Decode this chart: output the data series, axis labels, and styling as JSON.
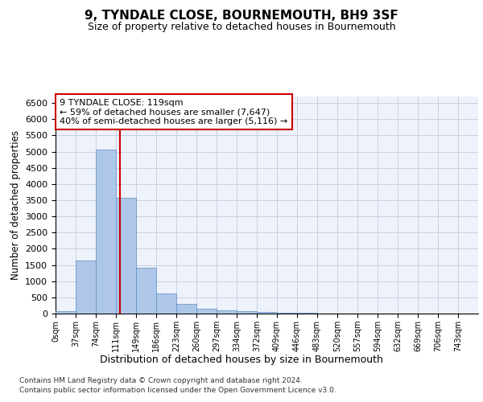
{
  "title": "9, TYNDALE CLOSE, BOURNEMOUTH, BH9 3SF",
  "subtitle": "Size of property relative to detached houses in Bournemouth",
  "xlabel": "Distribution of detached houses by size in Bournemouth",
  "ylabel": "Number of detached properties",
  "annotation_lines": [
    "9 TYNDALE CLOSE: 119sqm",
    "← 59% of detached houses are smaller (7,647)",
    "40% of semi-detached houses are larger (5,116) →"
  ],
  "footnote1": "Contains HM Land Registry data © Crown copyright and database right 2024.",
  "footnote2": "Contains public sector information licensed under the Open Government Licence v3.0.",
  "bar_color": "#aec6e8",
  "bar_edge_color": "#5a8fc2",
  "vline_color": "#cc0000",
  "vline_x": 119,
  "bin_width": 37,
  "num_bins": 21,
  "bin_labels": [
    "0sqm",
    "37sqm",
    "74sqm",
    "111sqm",
    "149sqm",
    "186sqm",
    "223sqm",
    "260sqm",
    "297sqm",
    "334sqm",
    "372sqm",
    "409sqm",
    "446sqm",
    "483sqm",
    "520sqm",
    "557sqm",
    "594sqm",
    "632sqm",
    "669sqm",
    "706sqm",
    "743sqm"
  ],
  "bar_heights": [
    70,
    1630,
    5060,
    3580,
    1410,
    620,
    290,
    145,
    105,
    75,
    55,
    35,
    20,
    10,
    5,
    3,
    2,
    1,
    1,
    0,
    0
  ],
  "ylim": [
    0,
    6700
  ],
  "yticks": [
    0,
    500,
    1000,
    1500,
    2000,
    2500,
    3000,
    3500,
    4000,
    4500,
    5000,
    5500,
    6000,
    6500
  ],
  "bg_color": "#eef2fb",
  "grid_color": "#c8d0e0"
}
